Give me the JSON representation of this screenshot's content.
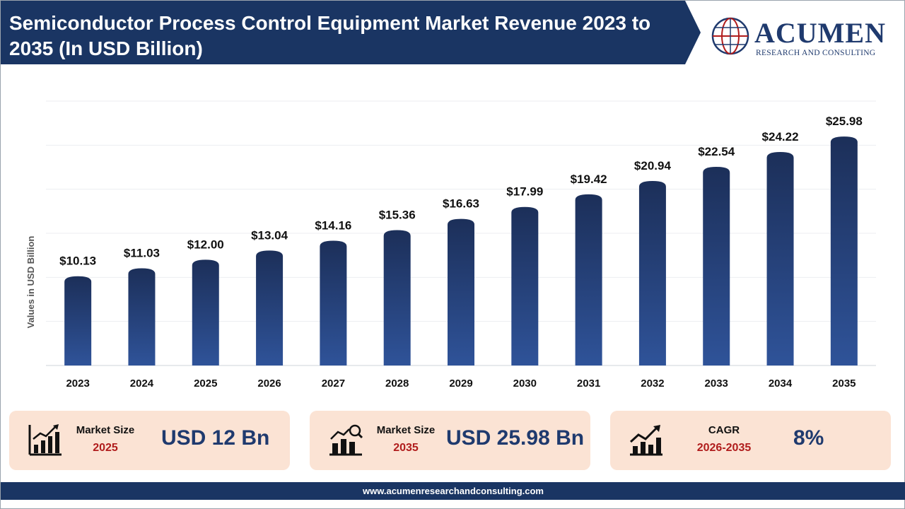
{
  "header": {
    "title": "Semiconductor Process Control Equipment Market Revenue 2023 to 2035 (In USD Billion)"
  },
  "logo": {
    "name": "ACUMEN",
    "tagline": "RESEARCH AND CONSULTING"
  },
  "colors": {
    "navy": "#1a3563",
    "bar_top": "#1c2f59",
    "bar_bottom": "#2f5399",
    "card_bg": "#fbe3d4",
    "accent_red": "#b01c1c"
  },
  "chart_data": {
    "type": "bar",
    "title": "",
    "xlabel": "",
    "ylabel": "Values in USD Billion",
    "categories": [
      "2023",
      "2024",
      "2025",
      "2026",
      "2027",
      "2028",
      "2029",
      "2030",
      "2031",
      "2032",
      "2033",
      "2034",
      "2035"
    ],
    "values": [
      10.13,
      11.03,
      12.0,
      13.04,
      14.16,
      15.36,
      16.63,
      17.99,
      19.42,
      20.94,
      22.54,
      24.22,
      25.98
    ],
    "data_labels": [
      "$10.13",
      "$11.03",
      "$12.00",
      "$13.04",
      "$14.16",
      "$15.36",
      "$16.63",
      "$17.99",
      "$19.42",
      "$20.94",
      "$22.54",
      "$24.22",
      "$25.98"
    ],
    "ylim": [
      0,
      30
    ],
    "grid": true,
    "legend": "none"
  },
  "stats": [
    {
      "label": "Market Size",
      "year": "2025",
      "value": "USD 12 Bn",
      "icon": "bar-chart-growth-icon"
    },
    {
      "label": "Market Size",
      "year": "2035",
      "value": "USD 25.98 Bn",
      "icon": "bar-chart-search-icon"
    },
    {
      "label": "CAGR",
      "year": "2026-2035",
      "value": "8%",
      "icon": "trend-up-icon"
    }
  ],
  "footer": {
    "url": "www.acumenresearchandconsulting.com"
  }
}
